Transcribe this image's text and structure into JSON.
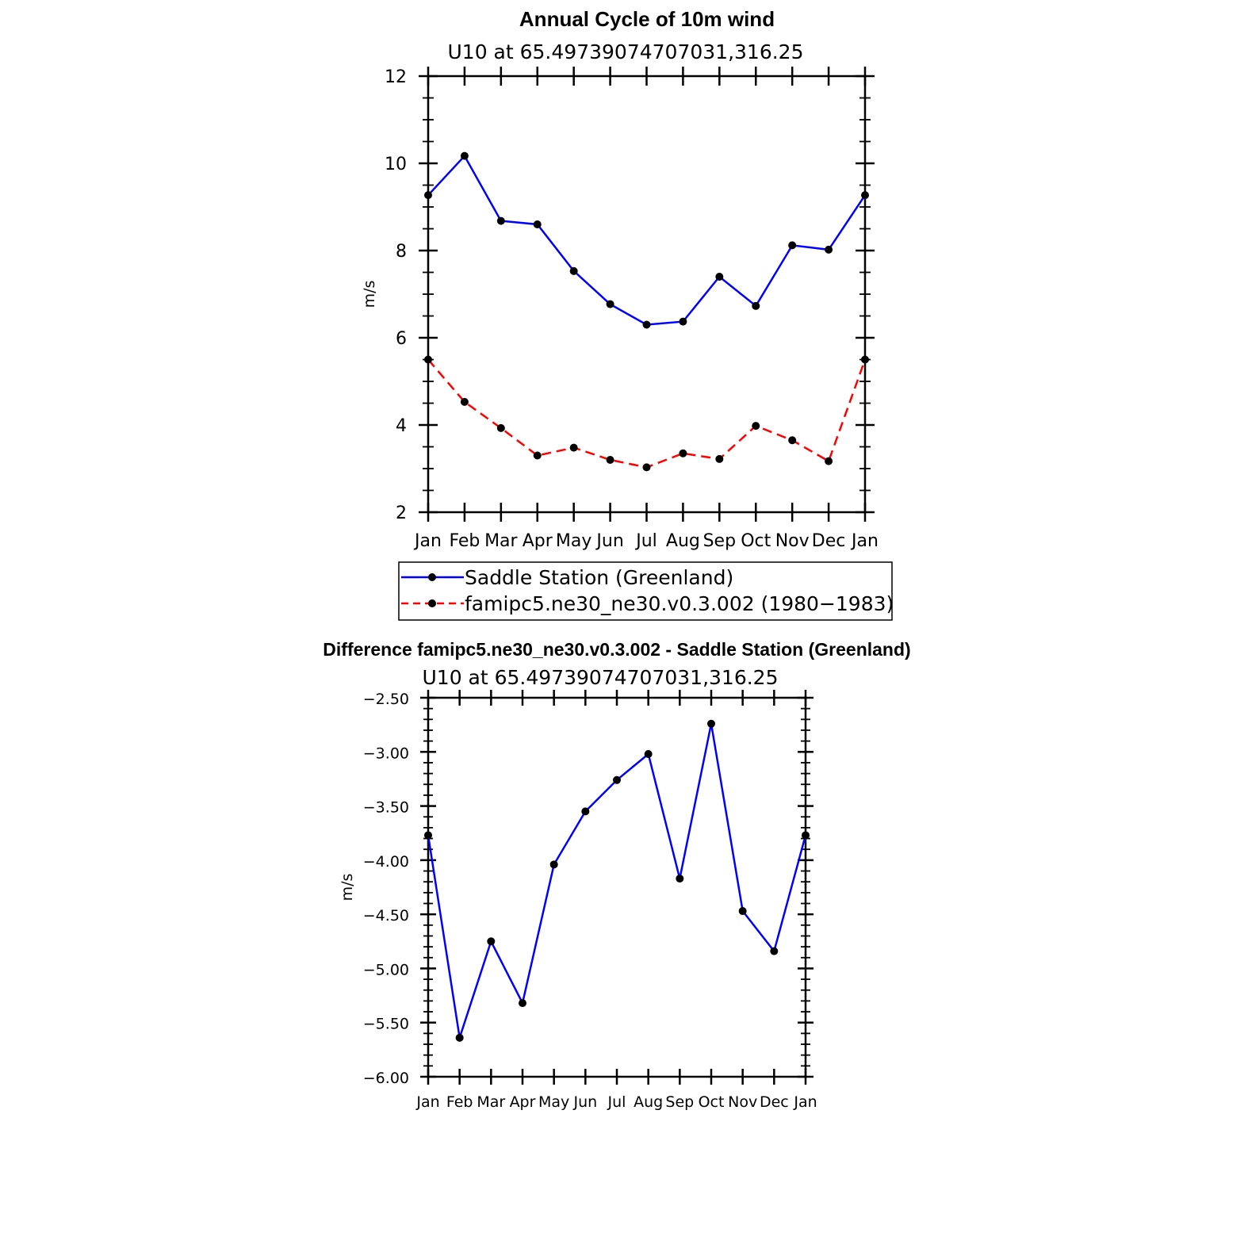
{
  "chart_data": [
    {
      "type": "line",
      "title": "Annual Cycle of 10m wind",
      "subtitle": "U10 at 65.49739074707031,316.25",
      "xlabel": "",
      "ylabel": "m/s",
      "categories": [
        "Jan",
        "Feb",
        "Mar",
        "Apr",
        "May",
        "Jun",
        "Jul",
        "Aug",
        "Sep",
        "Oct",
        "Nov",
        "Dec",
        "Jan"
      ],
      "ylim": [
        2,
        12
      ],
      "yticks": [
        "2",
        "4",
        "6",
        "8",
        "10",
        "12"
      ],
      "grid": false,
      "legend_position": "bottom",
      "series": [
        {
          "name": "Saddle Station (Greenland)",
          "color": "#0000ff",
          "dash": "solid",
          "values": [
            9.27,
            10.17,
            8.68,
            8.6,
            7.53,
            6.77,
            6.3,
            6.37,
            7.4,
            6.73,
            8.12,
            8.02,
            9.27
          ]
        },
        {
          "name": "famipc5.ne30_ne30.v0.3.002 (1980−1983)",
          "color": "#ff0000",
          "dash": "dashed",
          "values": [
            5.5,
            4.53,
            3.93,
            3.3,
            3.48,
            3.2,
            3.03,
            3.35,
            3.22,
            3.98,
            3.65,
            3.17,
            5.5
          ]
        }
      ]
    },
    {
      "type": "line",
      "title": "Difference famipc5.ne30_ne30.v0.3.002 - Saddle Station (Greenland)",
      "subtitle": "U10 at 65.49739074707031,316.25",
      "xlabel": "",
      "ylabel": "m/s",
      "categories": [
        "Jan",
        "Feb",
        "Mar",
        "Apr",
        "May",
        "Jun",
        "Jul",
        "Aug",
        "Sep",
        "Oct",
        "Nov",
        "Dec",
        "Jan"
      ],
      "ylim": [
        -6.0,
        -2.5
      ],
      "yticks": [
        "−6.00",
        "−5.50",
        "−5.00",
        "−4.50",
        "−4.00",
        "−3.50",
        "−3.00",
        "−2.50"
      ],
      "grid": false,
      "series": [
        {
          "color": "#0000ff",
          "dash": "solid",
          "values": [
            -3.77,
            -5.64,
            -4.75,
            -5.32,
            -4.04,
            -3.55,
            -3.26,
            -3.02,
            -4.17,
            -2.74,
            -4.47,
            -4.84,
            -3.77
          ]
        }
      ]
    }
  ]
}
